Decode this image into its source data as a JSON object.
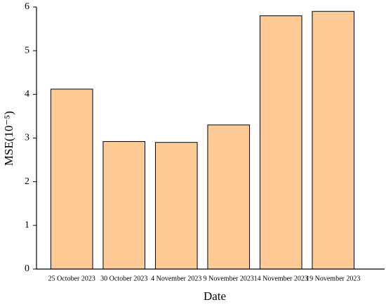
{
  "chart_data": {
    "type": "bar",
    "x_label": "Date",
    "y_label": "MSE(10⁻⁵)",
    "categories": [
      "25 October 2023",
      "30 October 2023",
      "4 November 2023",
      "9 November 2023",
      "14 November 2023",
      "19 November 2023"
    ],
    "values": [
      4.12,
      2.92,
      2.9,
      3.3,
      5.8,
      5.9
    ],
    "color": "#fdca95",
    "ylim": [
      0,
      6
    ],
    "yticks": [
      0,
      1,
      2,
      3,
      4,
      5,
      6
    ],
    "grid": false
  }
}
